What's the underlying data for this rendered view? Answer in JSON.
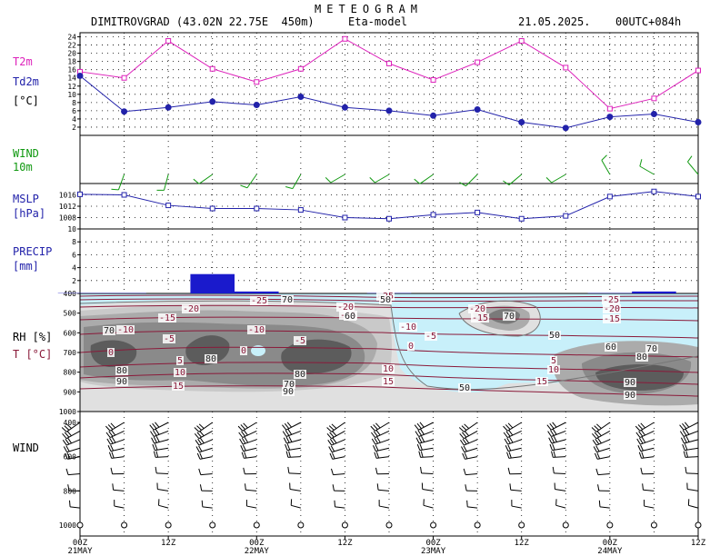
{
  "header": {
    "title": "METEOGRAM",
    "station": "DIMITROVGRAD (43.02N 22.75E  450m)",
    "model": "Eta-model",
    "date": "21.05.2025.",
    "run": "00UTC+084h"
  },
  "panel_labels": {
    "t2m": "T2m",
    "td2m": "Td2m",
    "t_unit": "[°C]",
    "wind": "WIND",
    "wind_level": "10m",
    "mslp": "MSLP",
    "mslp_unit": "[hPa]",
    "precip": "PRECIP",
    "precip_unit": "[mm]",
    "rh": "RH [%]",
    "t": "T [°C]",
    "upper_wind": "WIND"
  },
  "colors": {
    "t2m": "#dd22bb",
    "td2m": "#2222aa",
    "wind10m": "#119911",
    "mslp": "#2222aa",
    "precip": "#1a1acc",
    "temp_contour": "#8a1a3a",
    "moist_bg": "#c8f0fa"
  },
  "chart_data": [
    {
      "type": "line",
      "panel": "temperature",
      "x": [
        "00Z 21MAY",
        "06Z",
        "12Z",
        "18Z",
        "00Z 22MAY",
        "06Z",
        "12Z",
        "18Z",
        "00Z 23MAY",
        "06Z",
        "12Z",
        "18Z",
        "00Z 24MAY",
        "06Z",
        "12Z"
      ],
      "series": [
        {
          "name": "T2m",
          "values": [
            15.5,
            14,
            23,
            16.2,
            13,
            16.2,
            23.5,
            17.5,
            13.5,
            17.8,
            23,
            16.5,
            6.5,
            9,
            15.8
          ]
        },
        {
          "name": "Td2m",
          "values": [
            14.5,
            5.8,
            6.8,
            8.2,
            7.4,
            9.4,
            6.8,
            6,
            4.8,
            6.3,
            3.2,
            1.8,
            4.5,
            5.2,
            3.2
          ]
        }
      ],
      "ylim": [
        0,
        25
      ],
      "yticks": [
        2,
        4,
        6,
        8,
        10,
        12,
        14,
        16,
        18,
        20,
        22,
        24
      ]
    },
    {
      "type": "barbs",
      "panel": "wind10m",
      "x": [
        "00Z 21MAY",
        "06Z",
        "12Z",
        "18Z",
        "00Z 22MAY",
        "06Z",
        "12Z",
        "18Z",
        "00Z 23MAY",
        "06Z",
        "12Z",
        "18Z",
        "00Z 24MAY",
        "06Z",
        "12Z"
      ],
      "speed_kt": [
        0,
        10,
        10,
        10,
        10,
        10,
        10,
        10,
        10,
        10,
        10,
        10,
        10,
        10,
        10
      ],
      "direction_deg": [
        0,
        200,
        195,
        235,
        215,
        210,
        240,
        240,
        235,
        225,
        230,
        240,
        330,
        300,
        320
      ]
    },
    {
      "type": "line",
      "panel": "mslp",
      "x": [
        "00Z 21MAY",
        "06Z",
        "12Z",
        "18Z",
        "00Z 22MAY",
        "06Z",
        "12Z",
        "18Z",
        "00Z 23MAY",
        "06Z",
        "12Z",
        "18Z",
        "00Z 24MAY",
        "06Z",
        "12Z"
      ],
      "series": [
        {
          "name": "MSLP",
          "values": [
            1016.2,
            1016,
            1012.3,
            1011.2,
            1011.2,
            1010.7,
            1008,
            1007.6,
            1009,
            1009.8,
            1007.6,
            1008.6,
            1015.4,
            1017.2,
            1015.4
          ]
        }
      ],
      "ylim": [
        1004,
        1020
      ],
      "yticks": [
        1008,
        1012,
        1016
      ]
    },
    {
      "type": "bar",
      "panel": "precip",
      "x": [
        "00Z 21MAY",
        "06Z",
        "12Z",
        "18Z",
        "00Z 22MAY",
        "06Z",
        "12Z",
        "18Z",
        "00Z 23MAY",
        "06Z",
        "12Z",
        "18Z",
        "00Z 24MAY",
        "06Z",
        "12Z"
      ],
      "values": [
        0.05,
        0.05,
        0,
        3,
        0.3,
        0,
        0,
        0.05,
        0,
        0,
        0,
        0,
        0.05,
        0.3,
        0
      ],
      "ylim": [
        0,
        10
      ],
      "yticks": [
        2,
        4,
        6,
        8,
        10
      ]
    },
    {
      "type": "heatmap",
      "panel": "rh_temperature_cross_section",
      "yticks": [
        400,
        500,
        600,
        700,
        800,
        900,
        1000
      ],
      "rh_labels": [
        "50",
        "60",
        "70",
        "80",
        "90"
      ],
      "temperature_labels": [
        "-25",
        "-20",
        "-15",
        "-10",
        "-5",
        "0",
        "5",
        "10",
        "15"
      ]
    },
    {
      "type": "barbs",
      "panel": "upper_wind",
      "levels_hpa": [
        400,
        500,
        600,
        700,
        800,
        900,
        1000
      ],
      "yticks": [
        400,
        600,
        800,
        1000
      ]
    }
  ],
  "axis": {
    "ticks": [
      "00Z",
      "12Z",
      "00Z",
      "12Z",
      "00Z",
      "12Z",
      "00Z",
      "12Z"
    ],
    "dates": [
      "21MAY",
      "22MAY",
      "23MAY",
      "24MAY"
    ]
  },
  "contour_labels": [
    {
      "text": "-25",
      "kind": "t"
    },
    {
      "text": "-25",
      "kind": "t"
    },
    {
      "text": "-25",
      "kind": "t"
    },
    {
      "text": "-20",
      "kind": "t"
    },
    {
      "text": "-20",
      "kind": "t"
    },
    {
      "text": "-20",
      "kind": "t"
    },
    {
      "text": "-20",
      "kind": "t"
    },
    {
      "text": "-15",
      "kind": "t"
    },
    {
      "text": "-15",
      "kind": "t"
    },
    {
      "text": "-15",
      "kind": "t"
    },
    {
      "text": "-15",
      "kind": "t"
    },
    {
      "text": "-10",
      "kind": "t"
    },
    {
      "text": "-10",
      "kind": "t"
    },
    {
      "text": "-10",
      "kind": "t"
    },
    {
      "text": "-5",
      "kind": "t"
    },
    {
      "text": "-5",
      "kind": "t"
    },
    {
      "text": "-5",
      "kind": "t"
    },
    {
      "text": "0",
      "kind": "t"
    },
    {
      "text": "0",
      "kind": "t"
    },
    {
      "text": "0",
      "kind": "t"
    },
    {
      "text": "5",
      "kind": "t"
    },
    {
      "text": "5",
      "kind": "t"
    },
    {
      "text": "10",
      "kind": "t"
    },
    {
      "text": "10",
      "kind": "t"
    },
    {
      "text": "10",
      "kind": "t"
    },
    {
      "text": "15",
      "kind": "t"
    },
    {
      "text": "15",
      "kind": "t"
    },
    {
      "text": "15",
      "kind": "t"
    },
    {
      "text": "50",
      "kind": "rh"
    },
    {
      "text": "50",
      "kind": "rh"
    },
    {
      "text": "50",
      "kind": "rh"
    },
    {
      "text": "60",
      "kind": "rh"
    },
    {
      "text": "60",
      "kind": "rh"
    },
    {
      "text": "70",
      "kind": "rh"
    },
    {
      "text": "70",
      "kind": "rh"
    },
    {
      "text": "70",
      "kind": "rh"
    },
    {
      "text": "70",
      "kind": "rh"
    },
    {
      "text": "70",
      "kind": "rh"
    },
    {
      "text": "80",
      "kind": "rh"
    },
    {
      "text": "80",
      "kind": "rh"
    },
    {
      "text": "80",
      "kind": "rh"
    },
    {
      "text": "80",
      "kind": "rh"
    },
    {
      "text": "90",
      "kind": "rh"
    },
    {
      "text": "90",
      "kind": "rh"
    },
    {
      "text": "90",
      "kind": "rh"
    },
    {
      "text": "90",
      "kind": "rh"
    }
  ]
}
